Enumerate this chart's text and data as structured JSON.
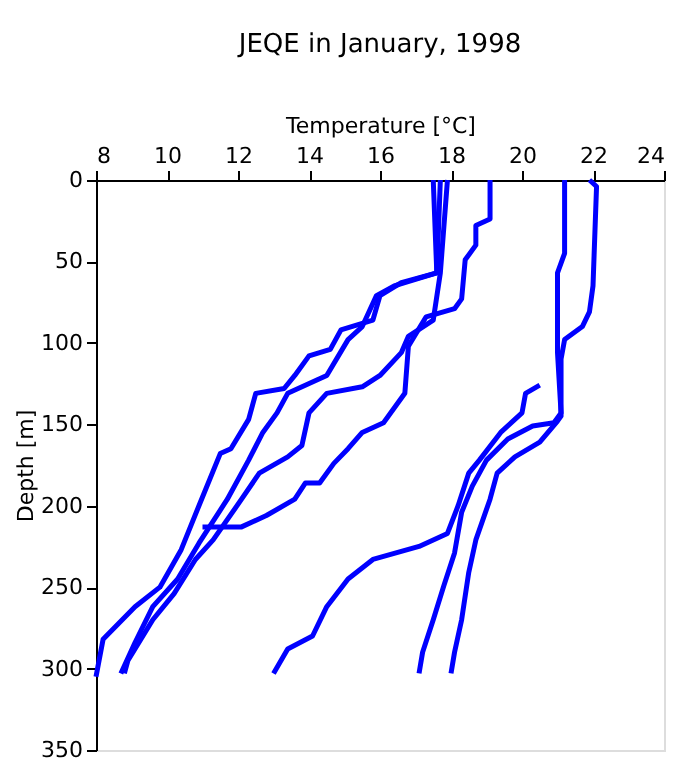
{
  "chart_data": {
    "type": "line",
    "title": "JEQE in January, 1998",
    "xlabel": "Temperature [°C]",
    "ylabel": "Depth [m]",
    "xlim": [
      8,
      24
    ],
    "xticks": [
      8,
      10,
      12,
      14,
      16,
      18,
      20,
      22,
      24
    ],
    "ylim": [
      350,
      0
    ],
    "yticks": [
      0,
      50,
      100,
      150,
      200,
      250,
      300,
      350
    ],
    "grid": false,
    "legend": false,
    "line_style": "solid",
    "series": [
      {
        "color": "#0000ff",
        "x": [
          17.7,
          17.6,
          16.6,
          16.0,
          15.8,
          14.9,
          14.6,
          14.0,
          13.6,
          13.3,
          12.5,
          12.3,
          11.8,
          11.5,
          10.9,
          10.4,
          9.8,
          9.1,
          8.2,
          8.0
        ],
        "values": [
          0,
          57,
          63,
          71,
          86,
          92,
          104,
          108,
          120,
          128,
          131,
          147,
          165,
          168,
          200,
          227,
          250,
          262,
          282,
          305
        ]
      },
      {
        "color": "#0000ff",
        "x": [
          17.5,
          17.6,
          16.4,
          15.9,
          15.5,
          15.1,
          14.5,
          13.4,
          13.1,
          12.7,
          12.3,
          11.7,
          10.9,
          10.3,
          9.6,
          9.1,
          8.7
        ],
        "values": [
          0,
          57,
          65,
          71,
          90,
          98,
          120,
          131,
          143,
          155,
          172,
          196,
          223,
          245,
          262,
          284,
          303
        ]
      },
      {
        "color": "#0000ff",
        "x": [
          17.9,
          17.7,
          17.5,
          16.8,
          16.6,
          16.0,
          15.5,
          14.5,
          14.0,
          13.8,
          13.4,
          12.6,
          12.1,
          11.3,
          10.8,
          10.2,
          9.6,
          8.9,
          8.8
        ],
        "values": [
          0,
          57,
          86,
          96,
          106,
          120,
          127,
          131,
          143,
          163,
          170,
          180,
          196,
          221,
          233,
          254,
          270,
          295,
          303
        ]
      },
      {
        "color": "#0000ff",
        "x": [
          19.1,
          19.1,
          18.7,
          18.7,
          18.4,
          18.3,
          18.1,
          17.3,
          16.8,
          16.7,
          16.1,
          15.5,
          15.1,
          14.7,
          14.3,
          13.9,
          13.6,
          12.8,
          12.1,
          11.0
        ],
        "values": [
          0,
          24,
          28,
          40,
          49,
          73,
          79,
          84,
          102,
          131,
          149,
          155,
          165,
          174,
          186,
          186,
          196,
          206,
          213,
          213
        ]
      },
      {
        "color": "#0000ff",
        "x": [
          21.2,
          21.2,
          21.0,
          21.0,
          21.1,
          20.9,
          20.3,
          19.6,
          19.0,
          18.6,
          18.3,
          18.1,
          17.8,
          17.5,
          17.2,
          17.1
        ],
        "values": [
          0,
          45,
          57,
          106,
          143,
          149,
          151,
          159,
          172,
          188,
          204,
          229,
          249,
          270,
          290,
          303
        ]
      },
      {
        "color": "#0000ff",
        "x": [
          21.9,
          22.1,
          22.0,
          21.9,
          21.7,
          21.2,
          21.1,
          21.1,
          21.0,
          20.5,
          19.8,
          19.3,
          19.1,
          18.7,
          18.5,
          18.3,
          18.1,
          18.0
        ],
        "values": [
          0,
          4,
          65,
          81,
          90,
          98,
          110,
          145,
          148,
          161,
          170,
          180,
          196,
          221,
          241,
          270,
          290,
          303
        ]
      },
      {
        "color": "#0000ff",
        "x": [
          20.5,
          20.1,
          20.0,
          19.6,
          19.4,
          18.8,
          18.5,
          18.2,
          17.9,
          17.1,
          15.8,
          15.1,
          14.5,
          14.1,
          13.4,
          13.0
        ],
        "values": [
          126,
          131,
          143,
          151,
          155,
          172,
          180,
          200,
          217,
          225,
          233,
          245,
          262,
          280,
          288,
          303
        ]
      }
    ]
  }
}
